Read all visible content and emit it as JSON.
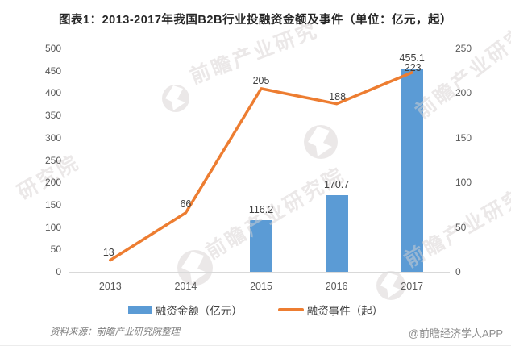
{
  "title": "图表1：2013-2017年我国B2B行业投融资金额及事件（单位：亿元，起）",
  "chart_data": {
    "type": "combo-bar-line",
    "categories": [
      "2013",
      "2014",
      "2015",
      "2016",
      "2017"
    ],
    "series": [
      {
        "name": "融资金额（亿元）",
        "type": "bar",
        "axis": "left",
        "color": "#5B9BD5",
        "values": [
          null,
          null,
          116.2,
          170.7,
          455.1
        ]
      },
      {
        "name": "融资事件（起）",
        "type": "line",
        "axis": "right",
        "color": "#ED7D31",
        "values": [
          13,
          66,
          205,
          188,
          223
        ]
      }
    ],
    "left_axis": {
      "min": 0,
      "max": 500,
      "step": 50,
      "ticks": [
        "0",
        "50",
        "100",
        "150",
        "200",
        "250",
        "300",
        "350",
        "400",
        "450",
        "500"
      ]
    },
    "right_axis": {
      "min": 0,
      "max": 250,
      "step": 50,
      "ticks": [
        "0",
        "50",
        "100",
        "150",
        "200",
        "250"
      ]
    },
    "grid": false,
    "legend_position": "bottom"
  },
  "legend": {
    "bar_label": "融资金额（亿元）",
    "line_label": "融资事件（起）"
  },
  "footer": {
    "source": "资料来源：前瞻产业研究院整理",
    "credit": "@前瞻经济学人APP"
  },
  "watermark": {
    "text_full": "前瞻产业研究院",
    "text_short": "前瞻产业研究",
    "text_partial": "研究院"
  },
  "colors": {
    "bar": "#5B9BD5",
    "line": "#ED7D31",
    "axis_text": "#595959",
    "label_text": "#404040",
    "axis_line": "#d9d9d9",
    "title_text": "#262626",
    "source_text": "#7f7f7f",
    "credit_text": "#8c8c8c",
    "watermark": "#d8d3d3"
  }
}
